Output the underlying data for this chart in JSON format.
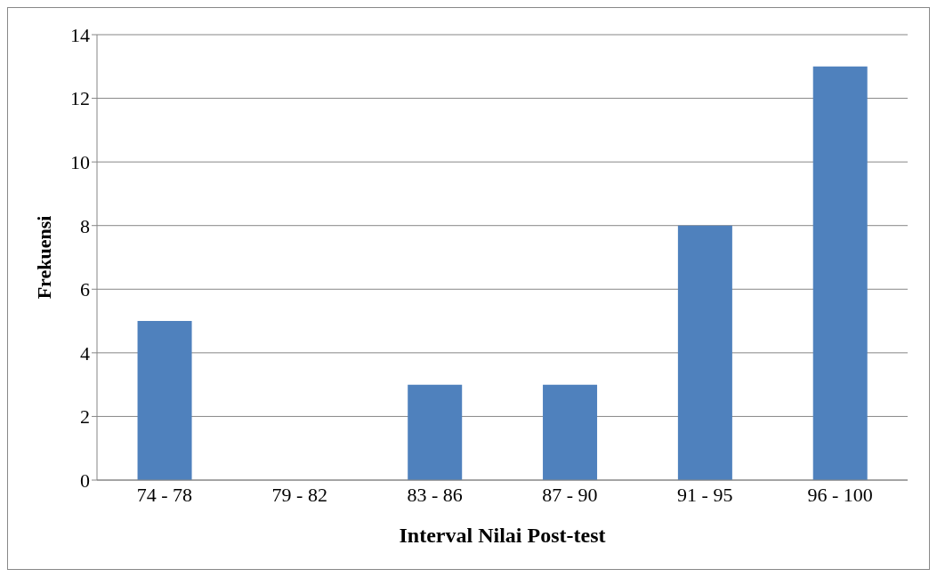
{
  "chart_data": {
    "type": "bar",
    "xlabel": "Interval Nilai Post-test",
    "ylabel": "Frekuensi",
    "categories": [
      "74 - 78",
      "79 - 82",
      "83 - 86",
      "87 - 90",
      "91 - 95",
      "96 - 100"
    ],
    "values": [
      5,
      0,
      3,
      3,
      8,
      13
    ],
    "color": "#4f81bd",
    "ylim": [
      0,
      14
    ],
    "yticks": [
      0,
      2,
      4,
      6,
      8,
      10,
      12,
      14
    ],
    "grid": "y"
  }
}
